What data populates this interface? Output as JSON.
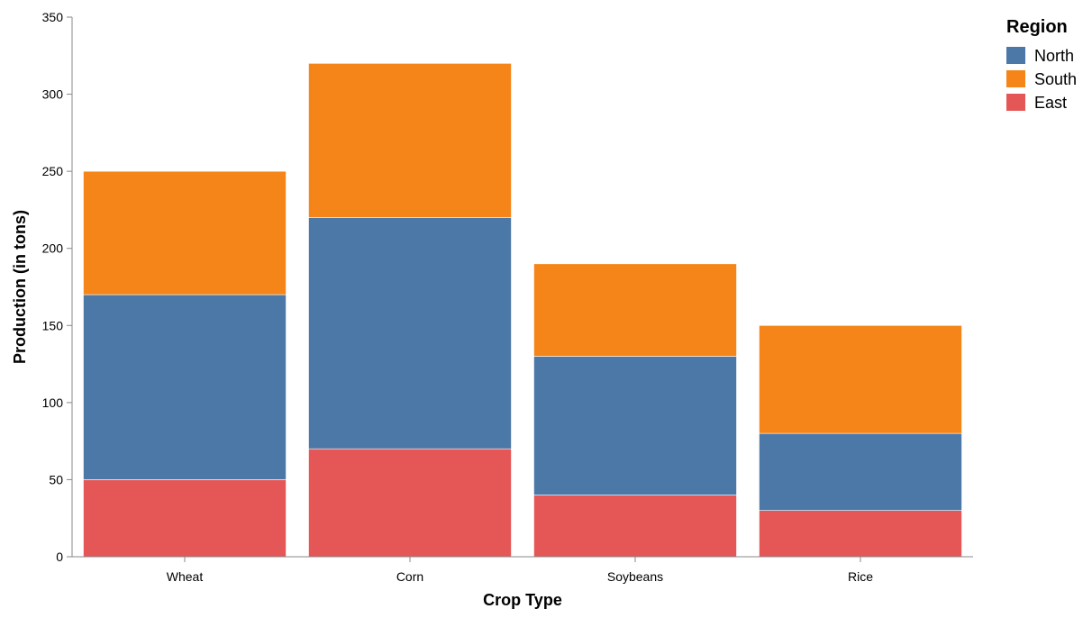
{
  "chart_data": {
    "type": "bar",
    "stacked": true,
    "categories": [
      "Wheat",
      "Corn",
      "Soybeans",
      "Rice"
    ],
    "series": [
      {
        "name": "East",
        "values": [
          50,
          70,
          40,
          30
        ],
        "color": "#e45756"
      },
      {
        "name": "North",
        "values": [
          120,
          150,
          90,
          50
        ],
        "color": "#4c78a8"
      },
      {
        "name": "South",
        "values": [
          80,
          100,
          60,
          70
        ],
        "color": "#f58518"
      }
    ],
    "xlabel": "Crop Type",
    "ylabel": "Production (in tons)",
    "ylim": [
      0,
      350
    ],
    "yticks": [
      0,
      50,
      100,
      150,
      200,
      250,
      300,
      350
    ],
    "grid": false,
    "legend": {
      "title": "Region",
      "placement": "top-right",
      "entries": [
        {
          "name": "North",
          "color": "#4c78a8"
        },
        {
          "name": "South",
          "color": "#f58518"
        },
        {
          "name": "East",
          "color": "#e45756"
        }
      ]
    }
  }
}
